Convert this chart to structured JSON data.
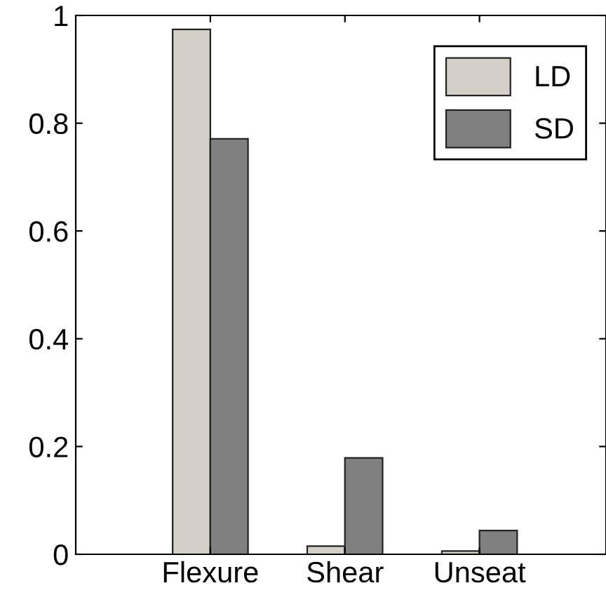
{
  "chart_data": {
    "type": "bar",
    "categories": [
      "Flexure",
      "Shear",
      "Unseat"
    ],
    "series": [
      {
        "name": "LD",
        "color": "#d4d0c8",
        "values": [
          0.974,
          0.015,
          0.006
        ]
      },
      {
        "name": "SD",
        "color": "#808080",
        "values": [
          0.771,
          0.179,
          0.044
        ]
      }
    ],
    "ylim": [
      0,
      1
    ],
    "yticks": [
      0,
      0.2,
      0.4,
      0.6,
      0.8,
      1
    ],
    "grid": false,
    "legend": "top right"
  }
}
